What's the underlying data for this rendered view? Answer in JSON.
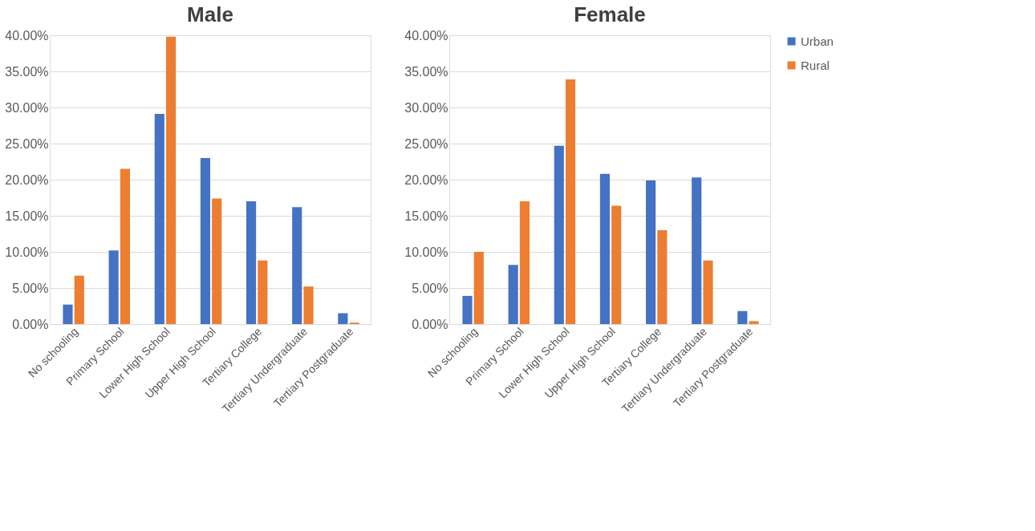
{
  "chart_data": [
    {
      "type": "bar",
      "title": "Male",
      "categories": [
        "No schooling",
        "Primary School",
        "Lower High School",
        "Upper High School",
        "Tertiary College",
        "Tertiary Undergraduate",
        "Tertiary Postgraduate"
      ],
      "series": [
        {
          "name": "Urban",
          "color": "#4472c4",
          "values": [
            2.7,
            10.2,
            29.1,
            23.0,
            17.0,
            16.2,
            1.5
          ]
        },
        {
          "name": "Rural",
          "color": "#ed7d31",
          "values": [
            6.7,
            21.5,
            39.8,
            17.4,
            8.8,
            5.2,
            0.2
          ]
        }
      ],
      "ylim": [
        0,
        40
      ],
      "yticks": [
        {
          "value": 0,
          "label": "0.00%"
        },
        {
          "value": 5,
          "label": "5.00%"
        },
        {
          "value": 10,
          "label": "10.00%"
        },
        {
          "value": 15,
          "label": "15.00%"
        },
        {
          "value": 20,
          "label": "20.00%"
        },
        {
          "value": 25,
          "label": "25.00%"
        },
        {
          "value": 30,
          "label": "30.00%"
        },
        {
          "value": 35,
          "label": "35.00%"
        },
        {
          "value": 40,
          "label": "40.00%"
        }
      ],
      "grid": "y",
      "legend": "right"
    },
    {
      "type": "bar",
      "title": "Female",
      "categories": [
        "No schooling",
        "Primary School",
        "Lower High School",
        "Upper High School",
        "Tertiary College",
        "Tertiary Undergraduate",
        "Tertiary Postgraduate"
      ],
      "series": [
        {
          "name": "Urban",
          "color": "#4472c4",
          "values": [
            3.9,
            8.2,
            24.7,
            20.8,
            19.9,
            20.3,
            1.8
          ]
        },
        {
          "name": "Rural",
          "color": "#ed7d31",
          "values": [
            10.0,
            17.0,
            33.9,
            16.4,
            13.0,
            8.8,
            0.4
          ]
        }
      ],
      "ylim": [
        0,
        40
      ],
      "yticks": [
        {
          "value": 0,
          "label": "0.00%"
        },
        {
          "value": 5,
          "label": "5.00%"
        },
        {
          "value": 10,
          "label": "10.00%"
        },
        {
          "value": 15,
          "label": "15.00%"
        },
        {
          "value": 20,
          "label": "20.00%"
        },
        {
          "value": 25,
          "label": "25.00%"
        },
        {
          "value": 30,
          "label": "30.00%"
        },
        {
          "value": 35,
          "label": "35.00%"
        },
        {
          "value": 40,
          "label": "40.00%"
        }
      ],
      "grid": "y",
      "legend": "right"
    }
  ]
}
